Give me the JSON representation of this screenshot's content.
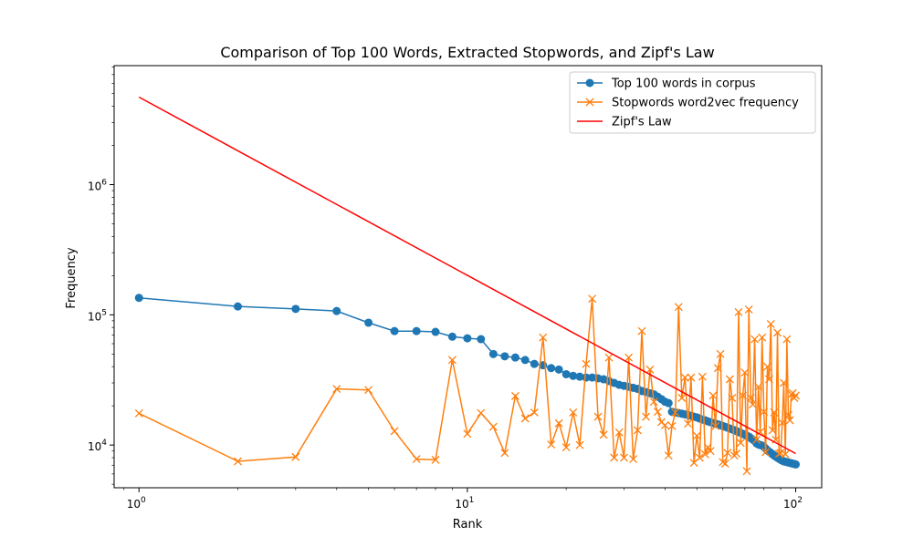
{
  "chart_data": {
    "type": "line",
    "title": "Comparison of Top 100 Words, Extracted Stopwords, and Zipf's Law",
    "xlabel": "Rank",
    "ylabel": "Frequency",
    "xscale": "log",
    "yscale": "log",
    "xlim": [
      0.84,
      120
    ],
    "ylim": [
      4700,
      8200000
    ],
    "grid": false,
    "legend_position": "top-right",
    "x_ticks": [
      {
        "value": 1,
        "base": "10",
        "exp": "0"
      },
      {
        "value": 10,
        "base": "10",
        "exp": "1"
      },
      {
        "value": 100,
        "base": "10",
        "exp": "2"
      }
    ],
    "y_ticks": [
      {
        "value": 10000,
        "base": "10",
        "exp": "4"
      },
      {
        "value": 100000,
        "base": "10",
        "exp": "5"
      },
      {
        "value": 1000000,
        "base": "10",
        "exp": "6"
      }
    ],
    "series": [
      {
        "name": "Top 100 words in corpus",
        "color": "#1f77b4",
        "marker": "circle",
        "x": [
          1,
          2,
          3,
          4,
          5,
          6,
          7,
          8,
          9,
          10,
          11,
          12,
          13,
          14,
          15,
          16,
          17,
          18,
          19,
          20,
          21,
          22,
          23,
          24,
          25,
          26,
          27,
          28,
          29,
          30,
          31,
          32,
          33,
          34,
          35,
          36,
          37,
          38,
          39,
          40,
          41,
          42,
          43,
          44,
          45,
          46,
          47,
          48,
          49,
          50,
          51,
          52,
          53,
          54,
          55,
          56,
          57,
          58,
          59,
          60,
          61,
          62,
          63,
          64,
          65,
          66,
          67,
          68,
          69,
          70,
          71,
          72,
          73,
          74,
          75,
          76,
          77,
          78,
          79,
          80,
          81,
          82,
          83,
          84,
          85,
          86,
          87,
          88,
          89,
          90,
          91,
          92,
          93,
          94,
          95,
          96,
          97,
          98,
          99,
          100
        ],
        "y": [
          135000,
          116000,
          111000,
          107000,
          87000,
          75000,
          75000,
          74000,
          68000,
          66000,
          65000,
          50000,
          48000,
          47000,
          45000,
          42000,
          41000,
          39000,
          38000,
          35000,
          34000,
          33500,
          33000,
          33000,
          32500,
          32000,
          31000,
          30000,
          29000,
          28500,
          28000,
          27500,
          27000,
          26000,
          25500,
          25000,
          24500,
          23500,
          22500,
          21500,
          21000,
          18000,
          17800,
          17600,
          17400,
          17200,
          17000,
          16800,
          16500,
          16300,
          16000,
          15700,
          15500,
          15200,
          15000,
          14800,
          14600,
          14400,
          14200,
          14000,
          13800,
          13600,
          13400,
          13200,
          13000,
          12800,
          12600,
          12400,
          12200,
          12000,
          11800,
          11600,
          11300,
          11000,
          10800,
          10300,
          10100,
          10000,
          9900,
          9700,
          9400,
          9100,
          8900,
          8700,
          8500,
          8300,
          8150,
          8000,
          7850,
          7700,
          7600,
          7500,
          7450,
          7400,
          7350,
          7300,
          7250,
          7200,
          7150,
          7100
        ]
      },
      {
        "name": "Stopwords word2vec frequency",
        "color": "#ff7f0e",
        "marker": "x",
        "x": [
          1,
          2,
          3,
          4,
          5,
          6,
          7,
          8,
          9,
          10,
          11,
          12,
          13,
          14,
          15,
          16,
          17,
          18,
          19,
          20,
          21,
          22,
          23,
          24,
          25,
          26,
          27,
          28,
          29,
          30,
          31,
          32,
          33,
          34,
          35,
          36,
          37,
          38,
          39,
          40,
          41,
          42,
          43,
          44,
          45,
          46,
          47,
          48,
          49,
          50,
          51,
          52,
          53,
          54,
          55,
          56,
          57,
          58,
          59,
          60,
          61,
          62,
          63,
          64,
          65,
          66,
          67,
          68,
          69,
          70,
          71,
          72,
          73,
          74,
          75,
          76,
          77,
          78,
          79,
          80,
          81,
          82,
          83,
          84,
          85,
          86,
          87,
          88,
          89,
          90,
          91,
          92,
          93,
          94,
          95,
          96,
          97,
          98,
          99,
          100
        ],
        "y": [
          17500,
          7500,
          8100,
          27000,
          26500,
          12800,
          7800,
          7700,
          45000,
          12200,
          17600,
          13800,
          8700,
          23800,
          16000,
          17800,
          67000,
          10100,
          14700,
          9600,
          17800,
          10000,
          42000,
          133000,
          16500,
          12000,
          47000,
          8000,
          12500,
          8000,
          47000,
          7800,
          13000,
          75000,
          16500,
          38000,
          21500,
          18000,
          15000,
          14200,
          8300,
          14000,
          17800,
          115000,
          23000,
          33000,
          14600,
          33000,
          7300,
          11800,
          8000,
          33500,
          8500,
          9600,
          9000,
          24000,
          14000,
          39000,
          50000,
          7400,
          7200,
          8700,
          32000,
          23000,
          8300,
          8600,
          105000,
          10400,
          24000,
          36000,
          6300,
          110000,
          23000,
          20500,
          65000,
          11000,
          28000,
          12600,
          67000,
          18000,
          8800,
          40000,
          32000,
          85000,
          13000,
          17800,
          11000,
          73000,
          8600,
          8700,
          14800,
          30000,
          8500,
          65000,
          17000,
          15500,
          24500,
          25000,
          23000,
          24000
        ]
      },
      {
        "name": "Zipf's Law",
        "color": "#ff0000",
        "marker": "none",
        "x": [
          1,
          100
        ],
        "y": [
          4700000,
          8600
        ]
      }
    ]
  }
}
